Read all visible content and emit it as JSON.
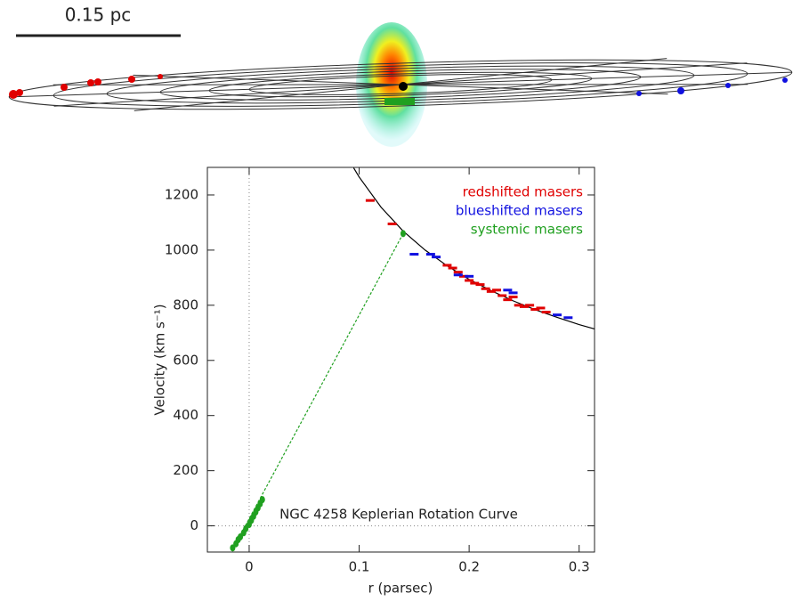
{
  "disk_diagram": {
    "scale_label": "0.15 pc"
  },
  "chart_data": {
    "type": "scatter",
    "annotation": "NGC 4258 Keplerian Rotation Curve",
    "x_label": "r  (parsec)",
    "y_label": "Velocity  (km s⁻¹)",
    "xlim": [
      -0.038,
      0.314
    ],
    "ylim": [
      -95,
      1300
    ],
    "xticks": [
      0,
      0.1,
      0.2,
      0.3
    ],
    "yticks": [
      0,
      200,
      400,
      600,
      800,
      1000,
      1200
    ],
    "legend": "upper right",
    "series": [
      {
        "name": "redshifted masers",
        "color": "#e00000",
        "x": [
          0.11,
          0.13,
          0.18,
          0.185,
          0.19,
          0.195,
          0.2,
          0.205,
          0.21,
          0.215,
          0.22,
          0.225,
          0.23,
          0.235,
          0.24,
          0.245,
          0.25,
          0.255,
          0.26,
          0.265,
          0.27
        ],
        "values": [
          1180,
          1095,
          945,
          935,
          920,
          905,
          890,
          880,
          875,
          860,
          850,
          855,
          835,
          820,
          830,
          800,
          795,
          800,
          785,
          790,
          775
        ]
      },
      {
        "name": "blueshifted masers",
        "color": "#1010e0",
        "x": [
          0.15,
          0.165,
          0.17,
          0.19,
          0.2,
          0.235,
          0.24,
          0.28,
          0.29
        ],
        "values": [
          985,
          985,
          975,
          910,
          905,
          855,
          845,
          765,
          755
        ]
      },
      {
        "name": "systemic masers",
        "color": "#20a020",
        "x": [
          -0.015,
          -0.012,
          -0.01,
          -0.008,
          -0.005,
          -0.003,
          0,
          0.002,
          0.004,
          0.006,
          0.008,
          0.01,
          0.012,
          0.14
        ],
        "values": [
          -80,
          -65,
          -50,
          -40,
          -25,
          -10,
          5,
          20,
          35,
          50,
          65,
          80,
          95,
          1060
        ]
      }
    ],
    "systemic_fit": {
      "color": "#20a020",
      "x": [
        -0.015,
        0.14
      ],
      "values": [
        -85,
        1060
      ]
    },
    "curve": {
      "color": "#000000",
      "x": [
        0.095,
        0.1,
        0.12,
        0.14,
        0.16,
        0.18,
        0.2,
        0.22,
        0.24,
        0.26,
        0.28,
        0.3,
        0.314
      ],
      "values": [
        1298,
        1265,
        1155,
        1069,
        1000,
        943,
        894,
        853,
        816,
        784,
        756,
        730,
        714
      ]
    }
  }
}
